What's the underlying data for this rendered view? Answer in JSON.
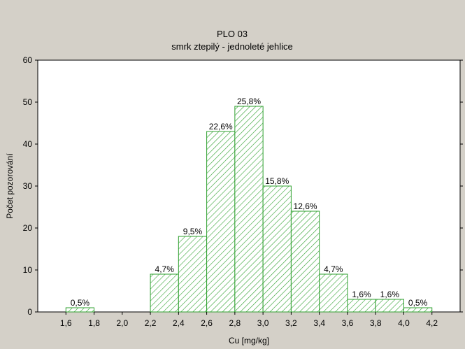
{
  "chart_data": {
    "type": "bar",
    "title": "PLO 03",
    "subtitle": "smrk ztepilý - jednoleté jehlice",
    "xlabel": "Cu [mg/kg]",
    "ylabel": "Počet pozorování",
    "xlim": [
      1.4,
      4.4
    ],
    "ylim": [
      0,
      60
    ],
    "x_ticks": [
      "1,6",
      "1,8",
      "2,0",
      "2,2",
      "2,4",
      "2,6",
      "2,8",
      "3,0",
      "3,2",
      "3,4",
      "3,6",
      "3,8",
      "4,0",
      "4,2"
    ],
    "x_tick_values": [
      1.6,
      1.8,
      2.0,
      2.2,
      2.4,
      2.6,
      2.8,
      3.0,
      3.2,
      3.4,
      3.6,
      3.8,
      4.0,
      4.2
    ],
    "y_ticks": [
      "0",
      "10",
      "20",
      "30",
      "40",
      "50",
      "60"
    ],
    "y_tick_values": [
      0,
      10,
      20,
      30,
      40,
      50,
      60
    ],
    "bins": [
      {
        "from": 1.6,
        "to": 1.8,
        "value": 1,
        "label": "0,5%"
      },
      {
        "from": 2.2,
        "to": 2.4,
        "value": 9,
        "label": "4,7%"
      },
      {
        "from": 2.4,
        "to": 2.6,
        "value": 18,
        "label": "9,5%"
      },
      {
        "from": 2.6,
        "to": 2.8,
        "value": 43,
        "label": "22,6%"
      },
      {
        "from": 2.8,
        "to": 3.0,
        "value": 49,
        "label": "25,8%"
      },
      {
        "from": 3.0,
        "to": 3.2,
        "value": 30,
        "label": "15,8%"
      },
      {
        "from": 3.2,
        "to": 3.4,
        "value": 24,
        "label": "12,6%"
      },
      {
        "from": 3.4,
        "to": 3.6,
        "value": 9,
        "label": "4,7%"
      },
      {
        "from": 3.6,
        "to": 3.8,
        "value": 3,
        "label": "1,6%"
      },
      {
        "from": 3.8,
        "to": 4.0,
        "value": 3,
        "label": "1,6%"
      },
      {
        "from": 4.0,
        "to": 4.2,
        "value": 1,
        "label": "0,5%"
      }
    ],
    "grid": false,
    "colors": {
      "bar_stroke": "#2fa02f",
      "bar_fill": "#ffffff",
      "hatch": "#2fa02f",
      "plot_bg": "#ffffff",
      "page_bg": "#d4d0c8"
    }
  }
}
